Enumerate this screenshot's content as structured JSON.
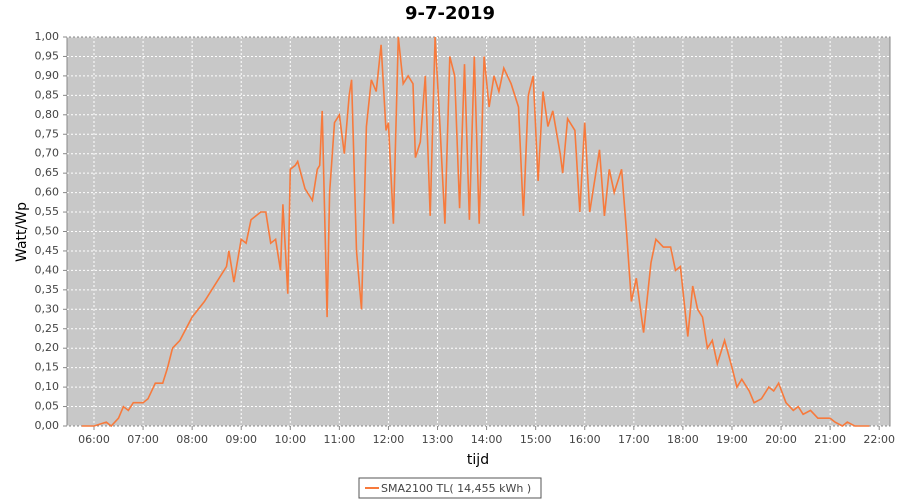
{
  "chart_data": {
    "type": "line",
    "title": "9-7-2019",
    "x_label": "tijd",
    "y_label": "Watt/Wp",
    "x": [
      5.75,
      6.0,
      6.25,
      6.35,
      6.5,
      6.6,
      6.7,
      6.8,
      7.0,
      7.1,
      7.25,
      7.4,
      7.5,
      7.6,
      7.75,
      8.0,
      8.25,
      8.5,
      8.7,
      8.75,
      8.85,
      9.0,
      9.1,
      9.2,
      9.4,
      9.5,
      9.6,
      9.7,
      9.8,
      9.85,
      9.95,
      10.0,
      10.1,
      10.15,
      10.3,
      10.45,
      10.55,
      10.6,
      10.65,
      10.75,
      10.8,
      10.9,
      11.0,
      11.1,
      11.2,
      11.25,
      11.35,
      11.45,
      11.55,
      11.65,
      11.75,
      11.85,
      11.95,
      12.0,
      12.1,
      12.2,
      12.3,
      12.4,
      12.5,
      12.55,
      12.65,
      12.75,
      12.85,
      12.95,
      13.05,
      13.15,
      13.25,
      13.35,
      13.45,
      13.55,
      13.65,
      13.75,
      13.85,
      13.95,
      14.05,
      14.15,
      14.25,
      14.35,
      14.5,
      14.65,
      14.75,
      14.85,
      14.95,
      15.05,
      15.15,
      15.25,
      15.35,
      15.5,
      15.55,
      15.65,
      15.8,
      15.9,
      16.0,
      16.1,
      16.3,
      16.4,
      16.5,
      16.6,
      16.75,
      16.85,
      16.95,
      17.05,
      17.2,
      17.35,
      17.45,
      17.6,
      17.75,
      17.85,
      17.95,
      18.1,
      18.2,
      18.3,
      18.4,
      18.5,
      18.6,
      18.7,
      18.85,
      19.0,
      19.1,
      19.2,
      19.35,
      19.45,
      19.6,
      19.75,
      19.85,
      19.95,
      20.1,
      20.25,
      20.35,
      20.45,
      20.6,
      20.75,
      21.0,
      21.1,
      21.25,
      21.35,
      21.5,
      21.8
    ],
    "series": [
      {
        "name": "SMA2100 TL( 14,455 kWh )",
        "color": "#f77a3c",
        "values": [
          0,
          0,
          0.01,
          0,
          0.02,
          0.05,
          0.04,
          0.06,
          0.06,
          0.07,
          0.11,
          0.11,
          0.15,
          0.2,
          0.22,
          0.28,
          0.32,
          0.37,
          0.41,
          0.45,
          0.37,
          0.48,
          0.47,
          0.53,
          0.55,
          0.55,
          0.47,
          0.48,
          0.4,
          0.57,
          0.34,
          0.66,
          0.67,
          0.68,
          0.61,
          0.58,
          0.66,
          0.67,
          0.81,
          0.28,
          0.6,
          0.78,
          0.8,
          0.7,
          0.85,
          0.89,
          0.45,
          0.3,
          0.77,
          0.89,
          0.86,
          0.98,
          0.76,
          0.78,
          0.52,
          1.0,
          0.88,
          0.9,
          0.88,
          0.69,
          0.73,
          0.9,
          0.54,
          1.0,
          0.77,
          0.52,
          0.95,
          0.9,
          0.56,
          0.93,
          0.53,
          0.95,
          0.52,
          0.95,
          0.82,
          0.9,
          0.86,
          0.92,
          0.88,
          0.82,
          0.54,
          0.85,
          0.9,
          0.63,
          0.86,
          0.77,
          0.81,
          0.7,
          0.65,
          0.79,
          0.76,
          0.55,
          0.78,
          0.55,
          0.71,
          0.54,
          0.66,
          0.6,
          0.66,
          0.5,
          0.32,
          0.38,
          0.24,
          0.42,
          0.48,
          0.46,
          0.46,
          0.4,
          0.41,
          0.23,
          0.36,
          0.3,
          0.28,
          0.2,
          0.22,
          0.16,
          0.22,
          0.15,
          0.1,
          0.12,
          0.09,
          0.06,
          0.07,
          0.1,
          0.09,
          0.11,
          0.06,
          0.04,
          0.05,
          0.03,
          0.04,
          0.02,
          0.02,
          0.01,
          0,
          0.01,
          0,
          0
        ]
      }
    ],
    "xlim": [
      5.45,
      22.22
    ],
    "ylim": [
      0,
      1.0
    ],
    "xticks": [
      {
        "value": 6,
        "label": "06:00"
      },
      {
        "value": 7,
        "label": "07:00"
      },
      {
        "value": 8,
        "label": "08:00"
      },
      {
        "value": 9,
        "label": "09:00"
      },
      {
        "value": 10,
        "label": "10:00"
      },
      {
        "value": 11,
        "label": "11:00"
      },
      {
        "value": 12,
        "label": "12:00"
      },
      {
        "value": 13,
        "label": "13:00"
      },
      {
        "value": 14,
        "label": "14:00"
      },
      {
        "value": 15,
        "label": "15:00"
      },
      {
        "value": 16,
        "label": "16:00"
      },
      {
        "value": 17,
        "label": "17:00"
      },
      {
        "value": 18,
        "label": "18:00"
      },
      {
        "value": 19,
        "label": "19:00"
      },
      {
        "value": 20,
        "label": "20:00"
      },
      {
        "value": 21,
        "label": "21:00"
      },
      {
        "value": 22,
        "label": "22:00"
      }
    ],
    "yticks": [
      {
        "value": 0,
        "label": "0,00"
      },
      {
        "value": 0.05,
        "label": "0,05"
      },
      {
        "value": 0.1,
        "label": "0,10"
      },
      {
        "value": 0.15,
        "label": "0,15"
      },
      {
        "value": 0.2,
        "label": "0,20"
      },
      {
        "value": 0.25,
        "label": "0,25"
      },
      {
        "value": 0.3,
        "label": "0,30"
      },
      {
        "value": 0.35,
        "label": "0,35"
      },
      {
        "value": 0.4,
        "label": "0,40"
      },
      {
        "value": 0.45,
        "label": "0,45"
      },
      {
        "value": 0.5,
        "label": "0,50"
      },
      {
        "value": 0.55,
        "label": "0,55"
      },
      {
        "value": 0.6,
        "label": "0,60"
      },
      {
        "value": 0.65,
        "label": "0,65"
      },
      {
        "value": 0.7,
        "label": "0,70"
      },
      {
        "value": 0.75,
        "label": "0,75"
      },
      {
        "value": 0.8,
        "label": "0,80"
      },
      {
        "value": 0.85,
        "label": "0,85"
      },
      {
        "value": 0.9,
        "label": "0,90"
      },
      {
        "value": 0.95,
        "label": "0,95"
      },
      {
        "value": 1.0,
        "label": "1,00"
      }
    ],
    "grid": true,
    "legend": "bottom"
  }
}
